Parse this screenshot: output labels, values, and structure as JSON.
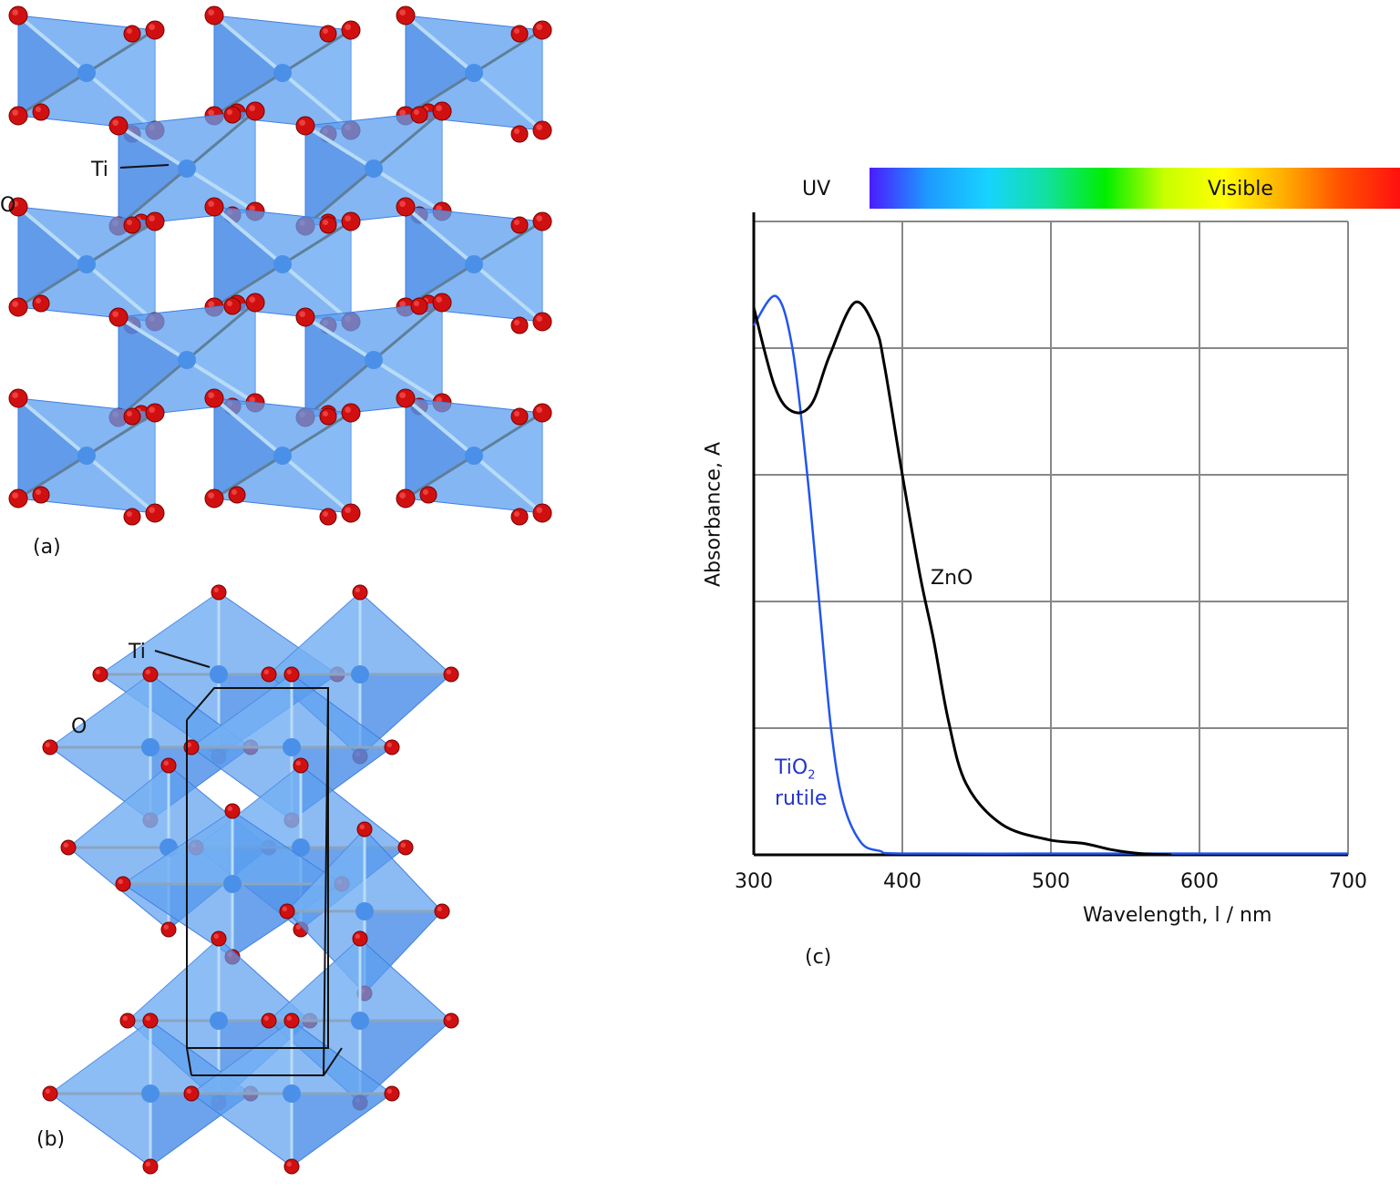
{
  "panels": {
    "a": {
      "label": "(a)",
      "atoms": {
        "ti": "Ti",
        "o": "O"
      },
      "colors": {
        "polyhedron": "#5b9ef0",
        "polyhedron_dark": "#3f7fe0",
        "oxygen": "#d01010",
        "titanium": "#4a90e8"
      }
    },
    "b": {
      "label": "(b)",
      "atoms": {
        "ti": "Ti",
        "o": "O"
      },
      "colors": {
        "polyhedron": "#5b9ef0",
        "polyhedron_dark": "#3f7fe0",
        "oxygen": "#d01010",
        "titanium": "#4a90e8",
        "cell": "#111111"
      }
    },
    "c": {
      "label": "(c)"
    }
  },
  "spectrum_bar": {
    "uv_label": "UV",
    "visible_label": "Visible",
    "gradient": [
      "#4a1cff",
      "#1e9bff",
      "#17d3ff",
      "#12e0a0",
      "#00ee00",
      "#c8ff00",
      "#ffff00",
      "#ffb000",
      "#ff5000",
      "#ff1010"
    ]
  },
  "chart_data": {
    "type": "line",
    "title": "",
    "xlabel": "Wavelength, l / nm",
    "ylabel": "Absorbance, A",
    "xlim": [
      300,
      700
    ],
    "ylim": [
      0,
      5
    ],
    "x_ticks": [
      "300",
      "400",
      "500",
      "600",
      "700"
    ],
    "y_ticks": [],
    "grid": true,
    "legend": "inline labels",
    "series": [
      {
        "name": "ZnO",
        "label": "ZnO",
        "color": "#000000",
        "x": [
          300,
          314,
          326,
          339,
          351,
          368,
          382,
          388,
          400,
          412,
          421,
          431,
          443,
          467,
          498,
          522,
          541,
          560,
          581
        ],
        "values": [
          4.32,
          3.7,
          3.5,
          3.56,
          3.94,
          4.36,
          4.15,
          3.86,
          3.0,
          2.2,
          1.7,
          1.06,
          0.56,
          0.24,
          0.12,
          0.09,
          0.04,
          0.01,
          0.0
        ]
      },
      {
        "name": "TiO2 rutile",
        "label_main": "TiO",
        "label_sub": "2",
        "label_line2": "rutile",
        "color": "#2255ee",
        "x": [
          300,
          315,
          326,
          336,
          344,
          352,
          360,
          372,
          385,
          400,
          500,
          600,
          700
        ],
        "values": [
          4.18,
          4.41,
          4.0,
          3.0,
          2.0,
          1.0,
          0.42,
          0.1,
          0.03,
          0.01,
          0.01,
          0.01,
          0.01
        ]
      }
    ]
  }
}
